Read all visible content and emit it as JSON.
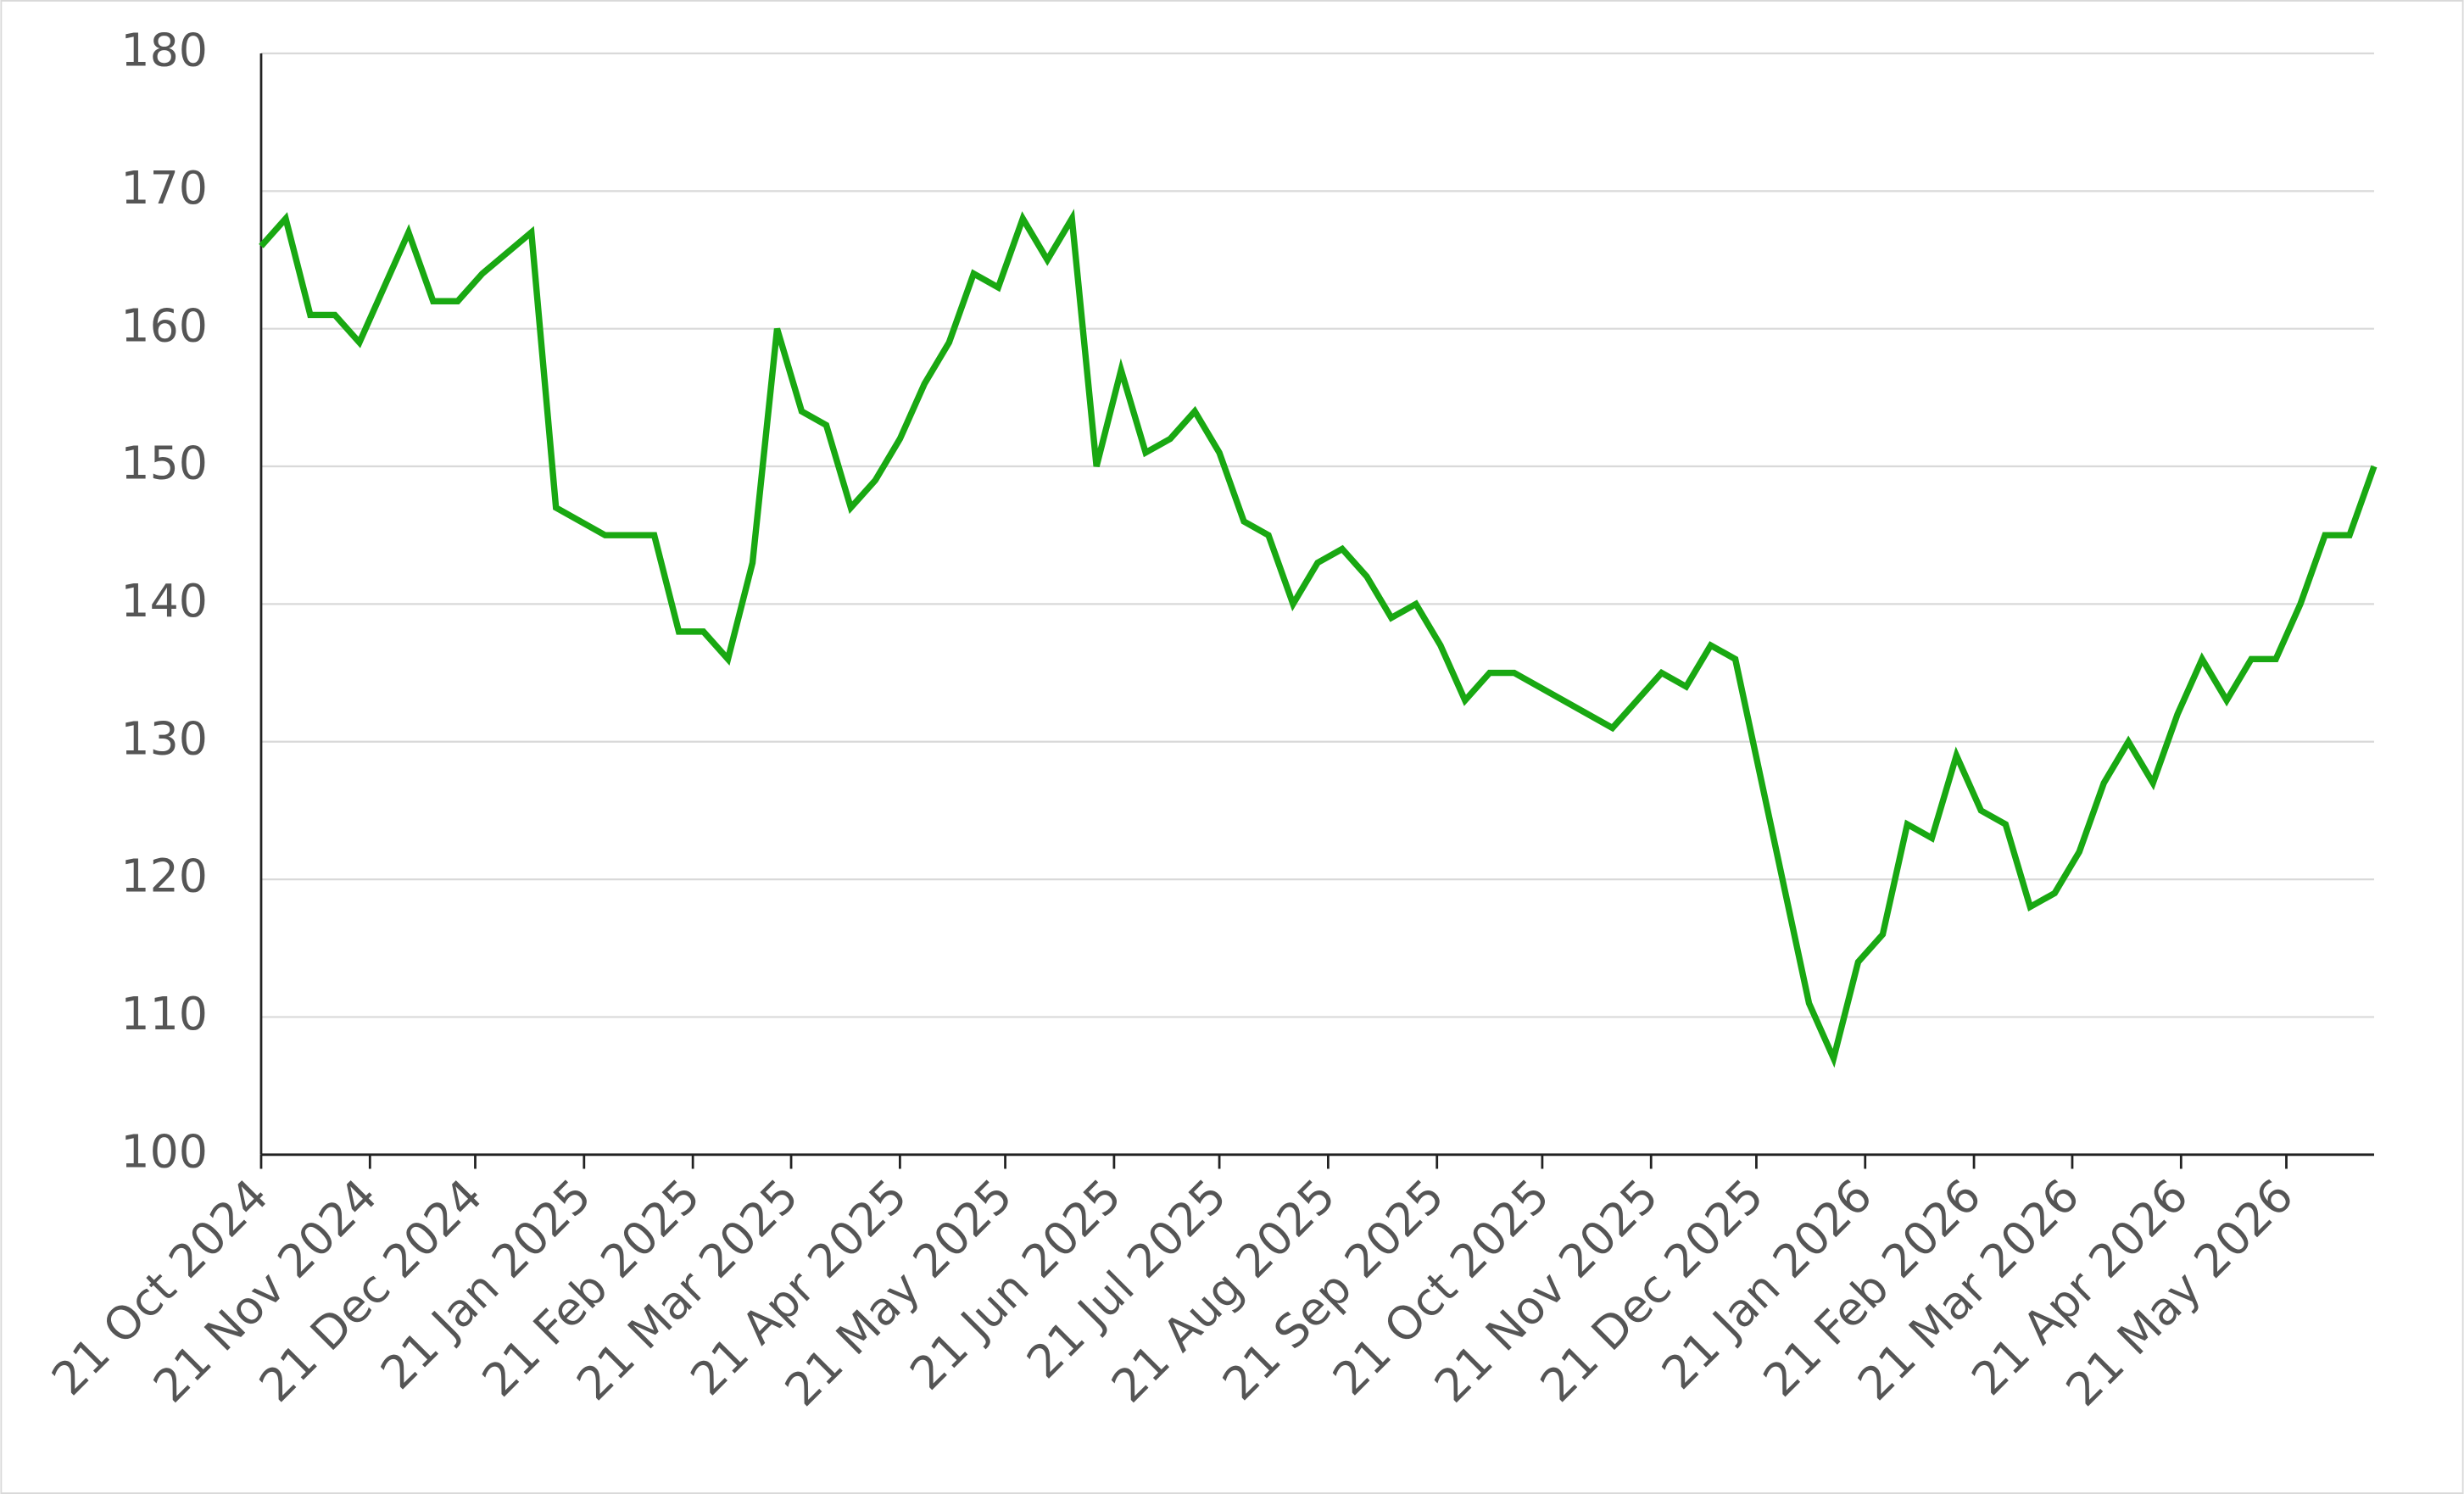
{
  "chart_data": {
    "type": "line",
    "x": [
      "2024-10-21",
      "2024-10-28",
      "2024-11-04",
      "2024-11-11",
      "2024-11-18",
      "2024-12-02",
      "2024-12-09",
      "2024-12-16",
      "2024-12-23",
      "2025-01-06",
      "2025-01-13",
      "2025-01-27",
      "2025-02-10",
      "2025-02-17",
      "2025-02-24",
      "2025-03-03",
      "2025-03-10",
      "2025-03-17",
      "2025-03-24",
      "2025-03-31",
      "2025-04-07",
      "2025-04-14",
      "2025-04-21",
      "2025-04-28",
      "2025-05-05",
      "2025-05-12",
      "2025-05-19",
      "2025-05-26",
      "2025-06-02",
      "2025-06-09",
      "2025-06-16",
      "2025-06-23",
      "2025-06-30",
      "2025-07-07",
      "2025-07-14",
      "2025-07-21",
      "2025-07-28",
      "2025-08-04",
      "2025-08-11",
      "2025-08-18",
      "2025-08-25",
      "2025-09-01",
      "2025-09-08",
      "2025-09-15",
      "2025-09-22",
      "2025-09-29",
      "2025-10-06",
      "2025-10-13",
      "2025-11-10",
      "2025-11-17",
      "2025-11-24",
      "2025-12-01",
      "2025-12-08",
      "2025-12-15",
      "2026-01-05",
      "2026-01-12",
      "2026-01-19",
      "2026-01-26",
      "2026-02-02",
      "2026-02-09",
      "2026-02-16",
      "2026-02-23",
      "2026-03-02",
      "2026-03-09",
      "2026-03-16",
      "2026-03-23",
      "2026-03-30",
      "2026-04-06",
      "2026-04-13",
      "2026-04-20",
      "2026-04-27",
      "2026-05-04",
      "2026-05-11",
      "2026-05-18",
      "2026-05-25",
      "2026-06-01",
      "2026-06-08",
      "2026-06-15"
    ],
    "values": [
      166,
      168,
      161,
      161,
      159,
      167,
      162,
      162,
      164,
      167,
      147,
      145,
      145,
      138,
      138,
      136,
      143,
      160,
      154,
      153,
      147,
      149,
      152,
      156,
      159,
      164,
      163,
      168,
      165,
      168,
      150,
      157,
      151,
      152,
      154,
      151,
      146,
      145,
      140,
      143,
      144,
      142,
      139,
      140,
      137,
      133,
      135,
      135,
      131,
      133,
      135,
      134,
      137,
      136,
      111,
      107,
      114,
      116,
      124,
      123,
      129,
      125,
      124,
      118,
      119,
      122,
      127,
      130,
      127,
      132,
      136,
      133,
      136,
      136,
      140,
      145,
      145,
      150
    ],
    "color": "#19a812",
    "xlim": [
      "2024-10-21",
      "2026-06-15"
    ],
    "xticks": [
      {
        "value": "2024-10-21",
        "label": "21 Oct 2024"
      },
      {
        "value": "2024-11-21",
        "label": "21 Nov 2024"
      },
      {
        "value": "2024-12-21",
        "label": "21 Dec 2024"
      },
      {
        "value": "2025-01-21",
        "label": "21 Jan 2025"
      },
      {
        "value": "2025-02-21",
        "label": "21 Feb 2025"
      },
      {
        "value": "2025-03-21",
        "label": "21 Mar 2025"
      },
      {
        "value": "2025-04-21",
        "label": "21 Apr 2025"
      },
      {
        "value": "2025-05-21",
        "label": "21 May 2025"
      },
      {
        "value": "2025-06-21",
        "label": "21 Jun 2025"
      },
      {
        "value": "2025-07-21",
        "label": "21 Jul 2025"
      },
      {
        "value": "2025-08-21",
        "label": "21 Aug 2025"
      },
      {
        "value": "2025-09-21",
        "label": "21 Sep 2025"
      },
      {
        "value": "2025-10-21",
        "label": "21 Oct 2025"
      },
      {
        "value": "2025-11-21",
        "label": "21 Nov 2025"
      },
      {
        "value": "2025-12-21",
        "label": "21 Dec 2025"
      },
      {
        "value": "2026-01-21",
        "label": "21 Jan 2026"
      },
      {
        "value": "2026-02-21",
        "label": "21 Feb 2026"
      },
      {
        "value": "2026-03-21",
        "label": "21 Mar 2026"
      },
      {
        "value": "2026-04-21",
        "label": "21 Apr 2026"
      },
      {
        "value": "2026-05-21",
        "label": "21 May 2026"
      }
    ],
    "ylim": [
      100,
      180
    ],
    "yticks": [
      100,
      110,
      120,
      130,
      140,
      150,
      160,
      170,
      180
    ],
    "grid": true
  }
}
